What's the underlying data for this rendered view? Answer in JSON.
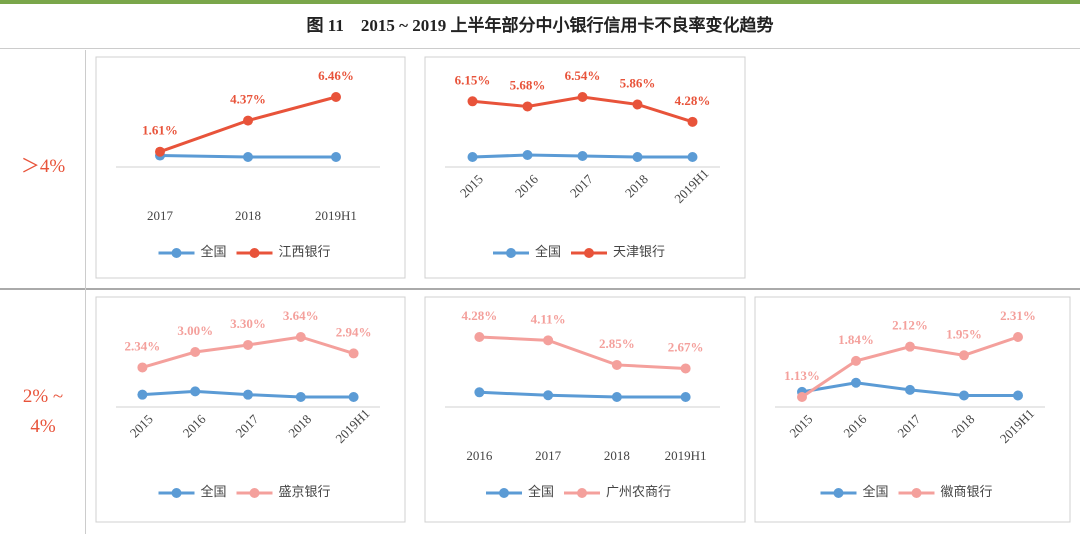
{
  "figure": {
    "title": "图 11　2015 ~ 2019 上半年部分中小银行信用卡不良率变化趋势",
    "row_labels": [
      "＞4%",
      "2% ~ 4%"
    ]
  },
  "chart_data": [
    {
      "type": "line",
      "categories": [
        "2017",
        "2018",
        "2019H1"
      ],
      "xtick_rotation": 0,
      "series": [
        {
          "name": "全国",
          "color": "#5b9bd5",
          "values": [
            1.27,
            1.14,
            1.14
          ]
        },
        {
          "name": "江西银行",
          "color": "#e8533a",
          "values": [
            1.61,
            4.37,
            6.46
          ],
          "value_labels": [
            "1.61%",
            "4.37%",
            "6.46%"
          ]
        }
      ]
    },
    {
      "type": "line",
      "categories": [
        "2015",
        "2016",
        "2017",
        "2018",
        "2019H1"
      ],
      "xtick_rotation": -45,
      "series": [
        {
          "name": "全国",
          "color": "#5b9bd5",
          "values": [
            1.08,
            1.26,
            1.17,
            1.08,
            1.08
          ]
        },
        {
          "name": "天津银行",
          "color": "#e8533a",
          "values": [
            6.15,
            5.68,
            6.54,
            5.86,
            4.28
          ],
          "value_labels": [
            "6.15%",
            "5.68%",
            "6.54%",
            "5.86%",
            "4.28%"
          ]
        }
      ]
    },
    {
      "type": "line",
      "categories": [
        "2015",
        "2016",
        "2017",
        "2018",
        "2019H1"
      ],
      "xtick_rotation": -45,
      "series": [
        {
          "name": "全国",
          "color": "#5b9bd5",
          "values": [
            1.18,
            1.32,
            1.18,
            1.08,
            1.08
          ]
        },
        {
          "name": "盛京银行",
          "color": "#f4a09c",
          "values": [
            2.34,
            3.0,
            3.3,
            3.64,
            2.94
          ],
          "value_labels": [
            "2.34%",
            "3.00%",
            "3.30%",
            "3.64%",
            "2.94%"
          ]
        }
      ]
    },
    {
      "type": "line",
      "categories": [
        "2016",
        "2017",
        "2018",
        "2019H1"
      ],
      "xtick_rotation": 0,
      "series": [
        {
          "name": "全国",
          "color": "#5b9bd5",
          "values": [
            1.45,
            1.3,
            1.21,
            1.21
          ]
        },
        {
          "name": "广州农商行",
          "color": "#f4a09c",
          "values": [
            4.28,
            4.11,
            2.85,
            2.67
          ],
          "value_labels": [
            "4.28%",
            "4.11%",
            "2.85%",
            "2.67%"
          ]
        }
      ]
    },
    {
      "type": "line",
      "categories": [
        "2015",
        "2016",
        "2017",
        "2018",
        "2019H1"
      ],
      "xtick_rotation": -45,
      "series": [
        {
          "name": "全国",
          "color": "#5b9bd5",
          "values": [
            1.23,
            1.41,
            1.27,
            1.16,
            1.16
          ]
        },
        {
          "name": "徽商银行",
          "color": "#f4a09c",
          "values": [
            1.13,
            1.84,
            2.12,
            1.95,
            2.31
          ],
          "value_labels": [
            "1.13%",
            "1.84%",
            "2.12%",
            "1.95%",
            "2.31%"
          ]
        }
      ]
    }
  ]
}
